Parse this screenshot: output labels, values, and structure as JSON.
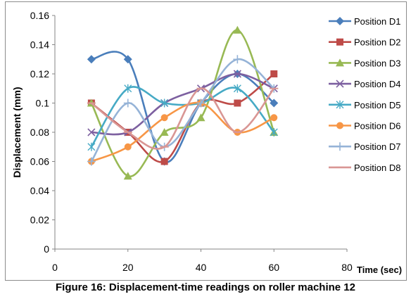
{
  "figure_caption": "Figure 16: Displacement-time readings on roller machine 12",
  "chart_data": {
    "type": "scatter",
    "smooth_lines": true,
    "title": "",
    "xlabel": "Time (sec)",
    "ylabel": "Displacement (mm)",
    "xlim": [
      0,
      80
    ],
    "ylim": [
      0,
      0.16
    ],
    "x_ticks": [
      "0",
      "20",
      "40",
      "60",
      "80"
    ],
    "y_ticks": [
      "0",
      "0.02",
      "0.04",
      "0.06",
      "0.08",
      "0.1",
      "0.12",
      "0.14",
      "0.16"
    ],
    "grid": false,
    "legend_position": "right",
    "x": [
      10,
      20,
      30,
      40,
      50,
      60
    ],
    "series": [
      {
        "name": "Position D1",
        "color": "#4a7ebb",
        "marker": "diamond",
        "values": [
          0.13,
          0.13,
          0.06,
          0.1,
          0.12,
          0.1
        ]
      },
      {
        "name": "Position D2",
        "color": "#be4b48",
        "marker": "square",
        "values": [
          0.1,
          0.08,
          0.06,
          0.1,
          0.1,
          0.12
        ]
      },
      {
        "name": "Position D3",
        "color": "#98b954",
        "marker": "triangle",
        "values": [
          0.1,
          0.05,
          0.08,
          0.09,
          0.15,
          0.08
        ]
      },
      {
        "name": "Position D4",
        "color": "#7d60a0",
        "marker": "x",
        "values": [
          0.08,
          0.08,
          0.1,
          0.11,
          0.12,
          0.11
        ]
      },
      {
        "name": "Position D5",
        "color": "#46aac5",
        "marker": "asterisk",
        "values": [
          0.07,
          0.11,
          0.1,
          0.1,
          0.11,
          0.08
        ]
      },
      {
        "name": "Position D6",
        "color": "#f79646",
        "marker": "circle",
        "values": [
          0.06,
          0.07,
          0.09,
          0.1,
          0.08,
          0.09
        ]
      },
      {
        "name": "Position D7",
        "color": "#95b3d7",
        "marker": "plus",
        "values": [
          0.06,
          0.1,
          0.07,
          0.1,
          0.13,
          0.11
        ]
      },
      {
        "name": "Position D8",
        "color": "#d99694",
        "marker": "line",
        "values": [
          0.1,
          0.08,
          0.07,
          0.11,
          0.08,
          0.11
        ]
      }
    ]
  }
}
